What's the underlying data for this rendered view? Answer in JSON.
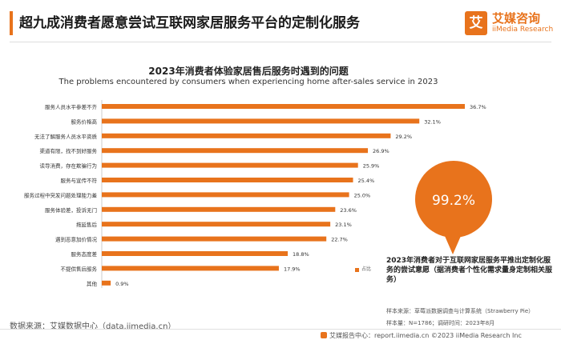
{
  "header": {
    "title": "超九成消费者愿意尝试互联网家居服务平台的定制化服务",
    "logo_mark": "艾",
    "logo_cn": "艾媒咨询",
    "logo_en": "iiMedia Research",
    "accent": "#e8731c"
  },
  "chart_data": {
    "type": "bar",
    "orientation": "horizontal",
    "title": "2023年消费者体验家居售后服务时遇到的问题",
    "subtitle": "The problems encountered by consumers when experiencing home after-sales service in 2023",
    "categories": [
      "服务人员水平参差不齐",
      "服务价格高",
      "无法了解服务人员水平资质",
      "渠道有限，找不到好服务",
      "读导消费，存在欺骗行为",
      "服务与宣传不符",
      "服务过程中突发问题处理能力差",
      "服务体验差，投诉无门",
      "拖延售后",
      "遇到恶意加价情况",
      "服务态度差",
      "不提供售后服务",
      "其他"
    ],
    "series": [
      {
        "name": "占比",
        "values": [
          36.7,
          32.1,
          29.2,
          26.9,
          25.9,
          25.4,
          25.0,
          23.6,
          23.1,
          22.7,
          18.8,
          17.9,
          0.9
        ],
        "labels": [
          "36.7%",
          "32.1%",
          "29.2%",
          "26.9%",
          "25.9%",
          "25.4%",
          "25.0%",
          "23.6%",
          "23.1%",
          "22.7%",
          "18.8%",
          "17.9%",
          "0.9%"
        ]
      }
    ],
    "xlim": [
      0,
      40
    ],
    "grid": false,
    "legend_position": "bottom-right",
    "bar_color": "#e8731c"
  },
  "highlight": {
    "value": "99.2%",
    "text": "2023年消费者对于互联网家居服务平推出定制化服务的尝试意愿（据消费者个性化需求量身定制相关服务）",
    "circle_color": "#e8731c"
  },
  "source": {
    "left": "数据来源：艾媒数据中心（data.iimedia.cn）",
    "sample_source": "样本来源：草莓派数据调查与计算系统（Strawberry Pie）",
    "sample_info": "样本量：N=1786；调研时间：2023年8月"
  },
  "footer": {
    "text": "艾媒报告中心：report.iimedia.cn  ©2023  iiMedia Research  Inc"
  }
}
